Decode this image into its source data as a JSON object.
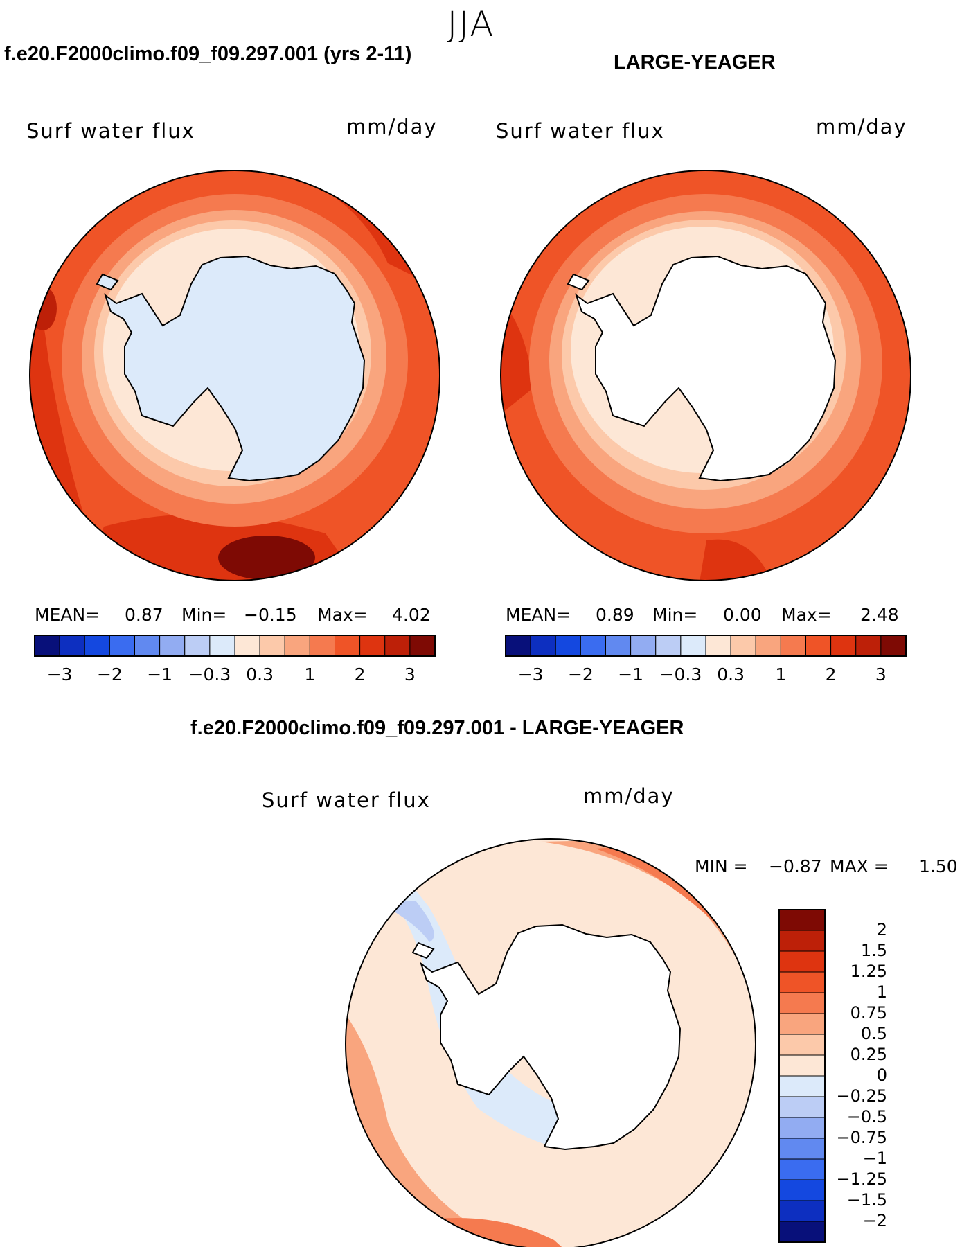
{
  "season": "JJA",
  "panels": [
    {
      "case": "f.e20.F2000climo.f09_f09.297.001 (yrs 2-11)",
      "variable": "Surf water flux",
      "units": "mm/day",
      "stats": {
        "mean_label": "MEAN=",
        "mean": "0.87",
        "min_label": "Min=",
        "min": "−0.15",
        "max_label": "Max=",
        "max": "4.02"
      }
    },
    {
      "case": "LARGE-YEAGER",
      "variable": "Surf water flux",
      "units": "mm/day",
      "stats": {
        "mean_label": "MEAN=",
        "mean": "0.89",
        "min_label": "Min=",
        "min": "0.00",
        "max_label": "Max=",
        "max": "2.48"
      }
    },
    {
      "case": "f.e20.F2000climo.f09_f09.297.001 - LARGE-YEAGER",
      "variable": "Surf water flux",
      "units": "mm/day",
      "stats": {
        "min_label": "MIN =",
        "min": "−0.87",
        "max_label": "MAX =",
        "max": "1.50"
      }
    }
  ],
  "colorbars": {
    "field": {
      "colors": [
        "#08107a",
        "#0d2fc0",
        "#1448e0",
        "#3a6cf0",
        "#6189f0",
        "#92acf2",
        "#bccdf5",
        "#dceafa",
        "#fde7d6",
        "#fcc9aa",
        "#f9a57e",
        "#f57a4f",
        "#ef5427",
        "#de3410",
        "#bd2008",
        "#7e0a04"
      ],
      "tick_labels": [
        "−3",
        "−2",
        "−1",
        "−0.3",
        "0.3",
        "1",
        "2",
        "3"
      ]
    },
    "diff": {
      "colors": [
        "#7e0a04",
        "#bd2008",
        "#de3410",
        "#ef5427",
        "#f57a4f",
        "#f9a57e",
        "#fcc9aa",
        "#fde7d6",
        "#dceafa",
        "#bccdf5",
        "#92acf2",
        "#6189f0",
        "#3a6cf0",
        "#1448e0",
        "#0d2fc0",
        "#08107a"
      ],
      "tick_labels": [
        "2",
        "1.5",
        "1.25",
        "1",
        "0.75",
        "0.5",
        "0.25",
        "0",
        "−0.25",
        "−0.5",
        "−0.75",
        "−1",
        "−1.25",
        "−1.5",
        "−2"
      ]
    }
  },
  "map_colors": {
    "deep_red": "#bd2008",
    "red": "#de3410",
    "orange_red": "#ef5427",
    "orange": "#f57a4f",
    "salmon": "#f9a57e",
    "peach": "#fcc9aa",
    "cream": "#fde7d6",
    "pale_blue": "#dceafa",
    "light_blue": "#bccdf5",
    "medium_blue": "#92acf2",
    "dark_red": "#7e0a04",
    "land_white": "#ffffff",
    "coast": "#000000"
  }
}
